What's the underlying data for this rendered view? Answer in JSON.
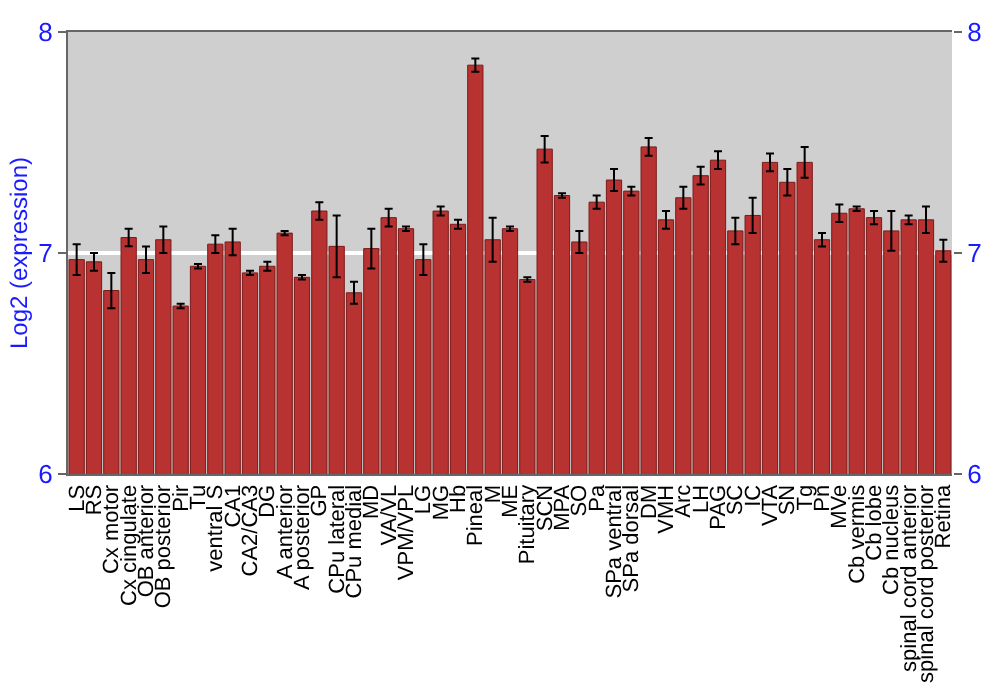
{
  "chart_data": {
    "type": "bar",
    "ylabel": "Log2 (expression)",
    "categories": [
      "LS",
      "RS",
      "Cx motor",
      "Cx cingulate",
      "OB anterior",
      "OB posterior",
      "Pir",
      "Tu",
      "ventral S",
      "CA1",
      "CA2/CA3",
      "DG",
      "A anterior",
      "A posterior",
      "GP",
      "CPu lateral",
      "CPu medial",
      "MD",
      "VA/VL",
      "VPM/VPL",
      "LG",
      "MG",
      "Hb",
      "Pineal",
      "M",
      "ME",
      "Pituitary",
      "SCN",
      "MPA",
      "SO",
      "Pa",
      "SPa ventral",
      "SPa dorsal",
      "DM",
      "VMH",
      "Arc",
      "LH",
      "PAG",
      "SC",
      "IC",
      "VTA",
      "SN",
      "Tg",
      "Pn",
      "MVe",
      "Cb vermis",
      "Cb lobe",
      "Cb nucleus",
      "spinal cord anterior",
      "spinal cord posterior",
      "Retina"
    ],
    "values": [
      6.97,
      6.96,
      6.83,
      7.07,
      6.97,
      7.06,
      6.76,
      6.94,
      7.04,
      7.05,
      6.91,
      6.94,
      7.09,
      6.89,
      7.19,
      7.03,
      6.82,
      7.02,
      7.16,
      7.11,
      6.97,
      7.19,
      7.13,
      7.85,
      7.06,
      7.11,
      6.88,
      7.47,
      7.26,
      7.05,
      7.23,
      7.33,
      7.28,
      7.48,
      7.15,
      7.25,
      7.35,
      7.42,
      7.1,
      7.17,
      7.41,
      7.32,
      7.41,
      7.06,
      7.18,
      7.2,
      7.16,
      7.1,
      7.15,
      7.15,
      7.01
    ],
    "errors": [
      0.07,
      0.04,
      0.08,
      0.04,
      0.06,
      0.06,
      0.01,
      0.01,
      0.04,
      0.06,
      0.01,
      0.02,
      0.01,
      0.01,
      0.04,
      0.14,
      0.05,
      0.09,
      0.04,
      0.01,
      0.07,
      0.02,
      0.02,
      0.03,
      0.1,
      0.01,
      0.01,
      0.06,
      0.01,
      0.05,
      0.03,
      0.05,
      0.02,
      0.04,
      0.04,
      0.05,
      0.04,
      0.04,
      0.06,
      0.08,
      0.04,
      0.06,
      0.07,
      0.03,
      0.04,
      0.01,
      0.03,
      0.09,
      0.02,
      0.06,
      0.05
    ],
    "color": "#b83232",
    "ylim": [
      6,
      8
    ],
    "yticks": [
      6,
      7,
      8
    ],
    "y2lim": [
      6,
      8
    ],
    "y2ticks": [
      6,
      7,
      8
    ],
    "grid": "y"
  }
}
